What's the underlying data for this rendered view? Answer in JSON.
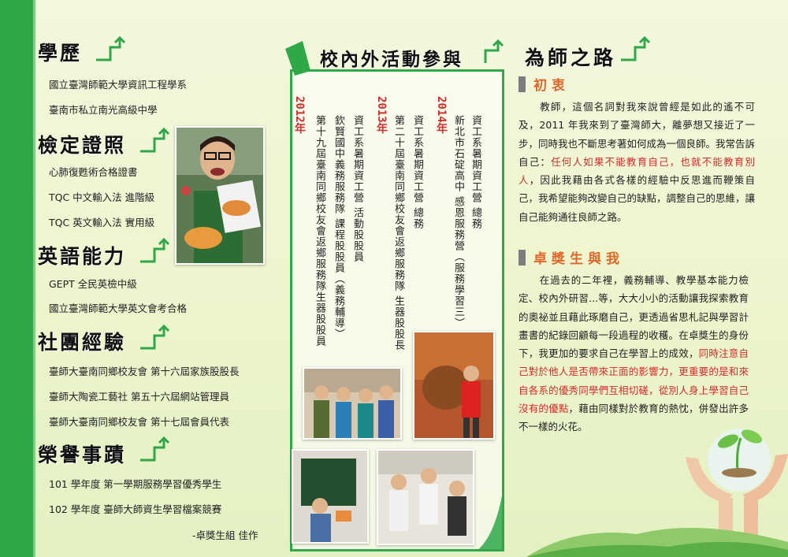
{
  "sections": {
    "education": {
      "title": "學歷",
      "items": [
        "國立臺灣師範大學資訊工程學系",
        "臺南市私立南光高級中學"
      ]
    },
    "certificates": {
      "title": "檢定證照",
      "items": [
        "心肺復甦術合格證書",
        "TQC 中文輸入法 進階級",
        "TQC 英文輸入法 實用級"
      ]
    },
    "english": {
      "title": "英語能力",
      "items": [
        "GEPT 全民英檢中級",
        "國立臺灣師範大學英文會考合格"
      ]
    },
    "clubs": {
      "title": "社團經驗",
      "items": [
        "臺師大臺南同鄉校友會 第十六屆家族股股長",
        "臺師大陶瓷工藝社 第五十六屆網站管理員",
        "臺師大臺南同鄉校友會 第十七屆會員代表"
      ]
    },
    "honors": {
      "title": "榮譽事蹟",
      "items": [
        "101 學年度 第一學期服務學習優秀學生",
        "102 學年度 臺師大師資生學習檔案競賽"
      ]
    },
    "credit": "-卓獎生組 佳作"
  },
  "activities": {
    "title": "校內外活動參與",
    "groups": [
      {
        "year": "2014年",
        "lines": [
          "資工系暑期資工營 總務",
          "新北市石碇高中 感恩服務營（服務學習三）"
        ]
      },
      {
        "year": "2013年",
        "lines": [
          "資工系暑期資工營 總務",
          "第二十屆臺南同鄉校友會返鄉服務隊 生器股股長"
        ]
      },
      {
        "year": "2012年",
        "lines": [
          "資工系暑期資工營 活動股股員",
          "欽賢國中義務服務隊 課程股股員（義務輔導）",
          "第十九屆臺南同鄉校友會返鄉服務隊生器股股員"
        ]
      }
    ]
  },
  "teacher": {
    "title": "為師之路",
    "sub1": "初衷",
    "p1_a": "教師，這個名詞對我來說曾經是如此的遙不可及，2011 年我來到了臺灣師大，離夢想又接近了一步，同時我也不斷思考著如何成為一個良師。我常告訴自己：",
    "p1_red": "任何人如果不能教育自己，也就不能教育別人",
    "p1_b": "，因此我藉由各式各樣的經驗中反思進而鞭策自己，我希望能夠改變自己的缺點，調整自己的思維，讓自己能夠通往良師之路。",
    "sub2": "卓獎生與我",
    "p2_a": "在過去的二年裡，義務輔導、教學基本能力檢定、校內外研習...等，大大小小的活動讓我探索教育的奧祕並且藉此琢磨自己，更透過省思札記與學習計畫書的紀錄回顧每一段過程的收穫。在卓獎生的身份下，我更加的要求自己在學習上的成效，",
    "p2_red": "同時注意自己對於他人是否帶來正面的影響力，更重要的是和來自各系的優秀同學們互相切磋，從別人身上學習自己沒有的優點",
    "p2_b": "，藉由同樣對於教育的熱忱，併發出許多不一樣的火花。"
  },
  "colors": {
    "accent_green": "#2fa84a",
    "highlight_red": "#d62b2b",
    "subhead_orange": "#e0662a"
  }
}
